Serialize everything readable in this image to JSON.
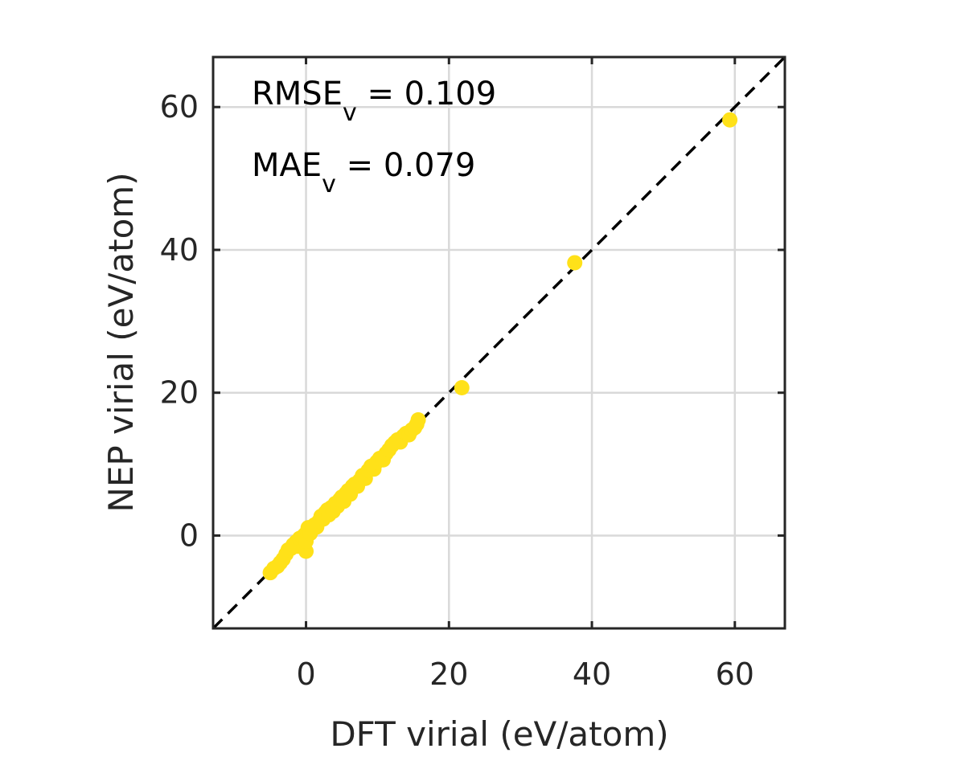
{
  "chart_data": {
    "type": "scatter",
    "title": "",
    "xlabel": "DFT virial (eV/atom)",
    "ylabel": "NEP virial (eV/atom)",
    "xlim": [
      -13,
      67
    ],
    "ylim": [
      -13,
      67
    ],
    "x_ticks": [
      0,
      20,
      40,
      60
    ],
    "y_ticks": [
      0,
      20,
      40,
      60
    ],
    "x_tick_labels": [
      "0",
      "20",
      "40",
      "60"
    ],
    "y_tick_labels": [
      "0",
      "20",
      "40",
      "60"
    ],
    "grid": true,
    "legend": "none",
    "reference_line": {
      "style": "dashed",
      "color": "#000000",
      "from": [
        -13,
        -13
      ],
      "to": [
        67,
        67
      ]
    },
    "annotations": [
      {
        "base": "RMSE",
        "sub": "v",
        "rest": " = 0.109"
      },
      {
        "base": "MAE",
        "sub": "v",
        "rest": " = 0.079"
      }
    ],
    "series": [
      {
        "color": "#FFE119",
        "points": [
          [
            -5.0,
            -5.2
          ],
          [
            -4.5,
            -4.6
          ],
          [
            -4.0,
            -4.3
          ],
          [
            -3.6,
            -3.8
          ],
          [
            -3.2,
            -3.3
          ],
          [
            -2.8,
            -2.6
          ],
          [
            -2.5,
            -2.0
          ],
          [
            -2.1,
            -1.8
          ],
          [
            -1.8,
            -1.3
          ],
          [
            -1.4,
            -0.9
          ],
          [
            -1.2,
            -1.5
          ],
          [
            -0.9,
            -0.4
          ],
          [
            -0.5,
            -0.2
          ],
          [
            -0.2,
            0.1
          ],
          [
            0.0,
            -2.2
          ],
          [
            0.0,
            -0.8
          ],
          [
            0.2,
            0.6
          ],
          [
            0.3,
            1.1
          ],
          [
            0.6,
            0.3
          ],
          [
            0.9,
            0.9
          ],
          [
            1.2,
            1.5
          ],
          [
            1.5,
            1.2
          ],
          [
            1.8,
            2.0
          ],
          [
            2.1,
            2.7
          ],
          [
            2.4,
            2.3
          ],
          [
            2.7,
            3.2
          ],
          [
            3.0,
            3.6
          ],
          [
            3.2,
            2.9
          ],
          [
            3.5,
            3.9
          ],
          [
            3.8,
            3.4
          ],
          [
            4.1,
            4.5
          ],
          [
            4.4,
            4.1
          ],
          [
            4.7,
            5.0
          ],
          [
            5.0,
            5.4
          ],
          [
            5.3,
            4.8
          ],
          [
            5.6,
            5.9
          ],
          [
            5.9,
            6.3
          ],
          [
            6.2,
            5.8
          ],
          [
            6.5,
            6.9
          ],
          [
            6.8,
            7.2
          ],
          [
            7.2,
            6.9
          ],
          [
            7.5,
            7.7
          ],
          [
            7.9,
            8.4
          ],
          [
            8.3,
            8.0
          ],
          [
            8.7,
            9.1
          ],
          [
            9.1,
            9.7
          ],
          [
            9.5,
            9.3
          ],
          [
            9.9,
            10.3
          ],
          [
            10.3,
            10.8
          ],
          [
            10.8,
            10.6
          ],
          [
            11.2,
            11.5
          ],
          [
            11.6,
            12.0
          ],
          [
            12.0,
            12.6
          ],
          [
            12.4,
            13.0
          ],
          [
            12.8,
            13.4
          ],
          [
            13.2,
            13.1
          ],
          [
            13.6,
            13.9
          ],
          [
            14.0,
            14.3
          ],
          [
            14.4,
            14.1
          ],
          [
            14.8,
            14.8
          ],
          [
            15.2,
            15.1
          ],
          [
            15.5,
            15.6
          ],
          [
            15.7,
            16.2
          ],
          [
            21.8,
            20.7
          ],
          [
            37.6,
            38.2
          ],
          [
            59.3,
            58.2
          ]
        ]
      }
    ]
  }
}
